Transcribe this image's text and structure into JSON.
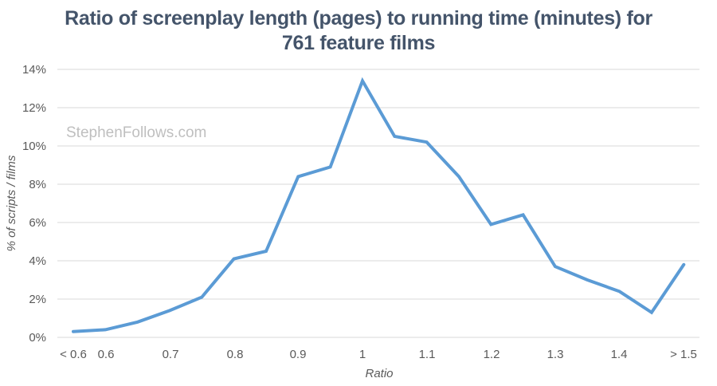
{
  "title": {
    "line1": "Ratio of screenplay length (pages) to running time (minutes) for",
    "line2": "761 feature films"
  },
  "watermark": "StephenFollows.com",
  "colors": {
    "line": "#5b9bd5",
    "grid": "#d9d9d9",
    "title": "#44546a",
    "text": "#595959"
  },
  "chart_data": {
    "type": "line",
    "title": "Ratio of screenplay length (pages) to running time (minutes) for 761 feature films",
    "xlabel": "Ratio",
    "ylabel": "% of scripts / films",
    "ylim": [
      0,
      14
    ],
    "yticks": [
      "0%",
      "2%",
      "4%",
      "6%",
      "8%",
      "10%",
      "12%",
      "14%"
    ],
    "xtick_labels": [
      "< 0.6",
      "0.6",
      "0.7",
      "0.8",
      "0.9",
      "1",
      "1.1",
      "1.2",
      "1.3",
      "1.4",
      "> 1.5"
    ],
    "grid": true,
    "legend": "none",
    "categories": [
      "< 0.6",
      "0.6",
      "0.65",
      "0.7",
      "0.75",
      "0.8",
      "0.85",
      "0.9",
      "0.95",
      "1",
      "1.05",
      "1.1",
      "1.15",
      "1.2",
      "1.25",
      "1.3",
      "1.35",
      "1.4",
      "1.45",
      "> 1.5"
    ],
    "series": [
      {
        "name": "% of scripts / films",
        "values": [
          0.3,
          0.4,
          0.8,
          1.4,
          2.1,
          4.1,
          4.5,
          8.4,
          8.9,
          13.4,
          10.5,
          10.2,
          8.4,
          5.9,
          6.4,
          3.7,
          3.0,
          2.4,
          1.3,
          3.8
        ]
      }
    ]
  }
}
